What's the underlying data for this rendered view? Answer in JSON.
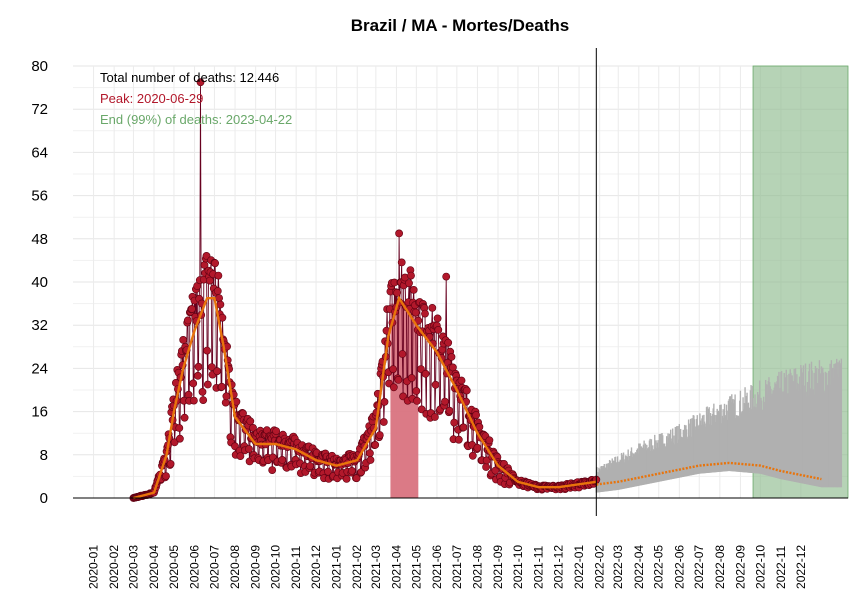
{
  "chart_data": {
    "type": "line",
    "title": "Brazil / MA - Mortes/Deaths",
    "xlabel": "",
    "ylabel": "",
    "ylim": [
      0,
      80
    ],
    "yticks": [
      0,
      8,
      16,
      24,
      32,
      40,
      48,
      56,
      64,
      72,
      80
    ],
    "x_tick_labels": [
      "2020-01",
      "2020-02",
      "2020-03",
      "2020-04",
      "2020-05",
      "2020-06",
      "2020-07",
      "2020-08",
      "2020-09",
      "2020-10",
      "2020-11",
      "2020-12",
      "2021-01",
      "2021-02",
      "2021-03",
      "2021-04",
      "2021-05",
      "2021-06",
      "2021-07",
      "2021-08",
      "2021-09",
      "2021-10",
      "2021-11",
      "2021-12",
      "2022-01",
      "2022-02",
      "2022-03",
      "2022-04",
      "2022-05",
      "2022-06",
      "2022-07",
      "2022-08",
      "2022-09",
      "2022-10",
      "2022-11",
      "2022-12"
    ],
    "grid": true,
    "annotations": {
      "total": "Total number of deaths: 12.446",
      "peak": "Peak: 2020-06-29",
      "end": "End (99%) of deaths: 2023-04-22"
    },
    "colors": {
      "observed_points": "#b2182b",
      "observed_line": "#67001f",
      "smoothed": "#e8740c",
      "forecast_band": "#b0b0b0",
      "peak_region": "#d9737f",
      "end_region": "#8fbc8f",
      "peak_text": "#b2182b",
      "end_text": "#6aa86a"
    },
    "last_observed_date": "2022-01-27",
    "peak_wave_region": [
      "2021-03-23",
      "2021-05-04"
    ],
    "end_region": [
      "2022-09-20",
      "2023-01-31"
    ],
    "observed_smoothed_monthly": [
      {
        "date": "2020-03-01",
        "value": 0
      },
      {
        "date": "2020-04-01",
        "value": 1
      },
      {
        "date": "2020-04-20",
        "value": 8
      },
      {
        "date": "2020-05-01",
        "value": 16
      },
      {
        "date": "2020-05-15",
        "value": 24
      },
      {
        "date": "2020-06-01",
        "value": 31
      },
      {
        "date": "2020-06-20",
        "value": 37
      },
      {
        "date": "2020-07-01",
        "value": 37
      },
      {
        "date": "2020-07-15",
        "value": 28
      },
      {
        "date": "2020-08-01",
        "value": 15
      },
      {
        "date": "2020-09-01",
        "value": 10
      },
      {
        "date": "2020-10-01",
        "value": 10
      },
      {
        "date": "2020-11-01",
        "value": 9
      },
      {
        "date": "2020-12-01",
        "value": 7
      },
      {
        "date": "2021-01-01",
        "value": 6
      },
      {
        "date": "2021-02-01",
        "value": 7
      },
      {
        "date": "2021-03-01",
        "value": 13
      },
      {
        "date": "2021-03-20",
        "value": 30
      },
      {
        "date": "2021-04-05",
        "value": 37
      },
      {
        "date": "2021-05-01",
        "value": 32
      },
      {
        "date": "2021-06-01",
        "value": 27
      },
      {
        "date": "2021-07-01",
        "value": 20
      },
      {
        "date": "2021-08-01",
        "value": 12
      },
      {
        "date": "2021-09-01",
        "value": 6
      },
      {
        "date": "2021-10-01",
        "value": 3
      },
      {
        "date": "2021-11-01",
        "value": 2
      },
      {
        "date": "2021-12-01",
        "value": 2
      },
      {
        "date": "2022-01-27",
        "value": 3
      }
    ],
    "forecast_median_monthly": [
      {
        "date": "2022-01-27",
        "value": 2.5
      },
      {
        "date": "2022-03-01",
        "value": 3
      },
      {
        "date": "2022-05-01",
        "value": 4.5
      },
      {
        "date": "2022-07-01",
        "value": 6
      },
      {
        "date": "2022-08-15",
        "value": 6.5
      },
      {
        "date": "2022-10-01",
        "value": 6
      },
      {
        "date": "2022-11-01",
        "value": 5
      },
      {
        "date": "2023-01-01",
        "value": 3.5
      }
    ],
    "forecast_upper_monthly": [
      {
        "date": "2022-01-27",
        "value": 5
      },
      {
        "date": "2022-04-01",
        "value": 9
      },
      {
        "date": "2022-06-01",
        "value": 12
      },
      {
        "date": "2022-08-01",
        "value": 16
      },
      {
        "date": "2022-10-01",
        "value": 19
      },
      {
        "date": "2022-12-01",
        "value": 22
      },
      {
        "date": "2023-01-31",
        "value": 23
      }
    ],
    "notable_points": [
      {
        "date": "2020-06-10",
        "value": 77
      },
      {
        "date": "2021-04-05",
        "value": 49
      },
      {
        "date": "2021-06-15",
        "value": 41
      }
    ]
  }
}
